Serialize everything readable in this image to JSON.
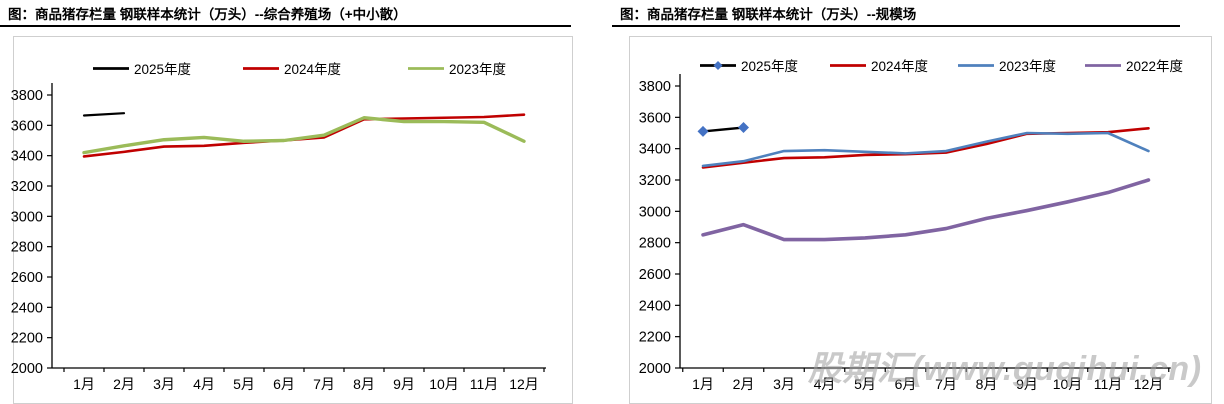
{
  "page": {
    "background": "#ffffff",
    "watermark_text": "股期汇(www.guqihui.cn)"
  },
  "chart_data": [
    {
      "type": "line",
      "title": "图：商品猪存栏量 钢联样本统计（万头）--综合养殖场（+中小散）",
      "categories": [
        "1月",
        "2月",
        "3月",
        "4月",
        "5月",
        "6月",
        "7月",
        "8月",
        "9月",
        "10月",
        "11月",
        "12月"
      ],
      "ylim": [
        2000,
        3800
      ],
      "ytick_step": 200,
      "yticks": [
        3800,
        3600,
        3400,
        3200,
        3000,
        2800,
        2600,
        2400,
        2200,
        2000
      ],
      "grid": false,
      "legend_position": "top",
      "watermark": "",
      "series": [
        {
          "name": "2025年度",
          "color": "#000000",
          "marker": "none",
          "values": [
            3665,
            3680,
            null,
            null,
            null,
            null,
            null,
            null,
            null,
            null,
            null,
            null
          ]
        },
        {
          "name": "2024年度",
          "color": "#C00000",
          "marker": "none",
          "values": [
            3395,
            3425,
            3460,
            3465,
            3485,
            3500,
            3520,
            3640,
            3645,
            3650,
            3655,
            3670
          ]
        },
        {
          "name": "2023年度",
          "color": "#9BBB59",
          "marker": "none",
          "values": [
            3420,
            3465,
            3505,
            3520,
            3495,
            3500,
            3535,
            3650,
            3625,
            3625,
            3620,
            3495
          ]
        }
      ]
    },
    {
      "type": "line",
      "title": "图：商品猪存栏量 钢联样本统计（万头）--规模场",
      "categories": [
        "1月",
        "2月",
        "3月",
        "4月",
        "5月",
        "6月",
        "7月",
        "8月",
        "9月",
        "10月",
        "11月",
        "12月"
      ],
      "ylim": [
        2000,
        3800
      ],
      "ytick_step": 200,
      "yticks": [
        3800,
        3600,
        3400,
        3200,
        3000,
        2800,
        2600,
        2400,
        2200,
        2000
      ],
      "grid": false,
      "legend_position": "top",
      "watermark": "股期汇(www.guqihui.cn)",
      "series": [
        {
          "name": "2025年度",
          "color": "#000000",
          "marker": "diamond",
          "marker_color": "#4472C4",
          "values": [
            3510,
            3535,
            null,
            null,
            null,
            null,
            null,
            null,
            null,
            null,
            null,
            null
          ]
        },
        {
          "name": "2024年度",
          "color": "#C00000",
          "marker": "none",
          "values": [
            3280,
            3310,
            3340,
            3345,
            3360,
            3365,
            3375,
            3430,
            3495,
            3500,
            3505,
            3530
          ]
        },
        {
          "name": "2023年度",
          "color": "#4F81BD",
          "marker": "none",
          "values": [
            3290,
            3320,
            3385,
            3390,
            3380,
            3370,
            3385,
            3445,
            3500,
            3495,
            3500,
            3385
          ]
        },
        {
          "name": "2022年度",
          "color": "#8064A2",
          "marker": "none",
          "values": [
            2850,
            2915,
            2820,
            2820,
            2830,
            2850,
            2890,
            2955,
            3005,
            3060,
            3120,
            3200
          ]
        }
      ]
    }
  ]
}
